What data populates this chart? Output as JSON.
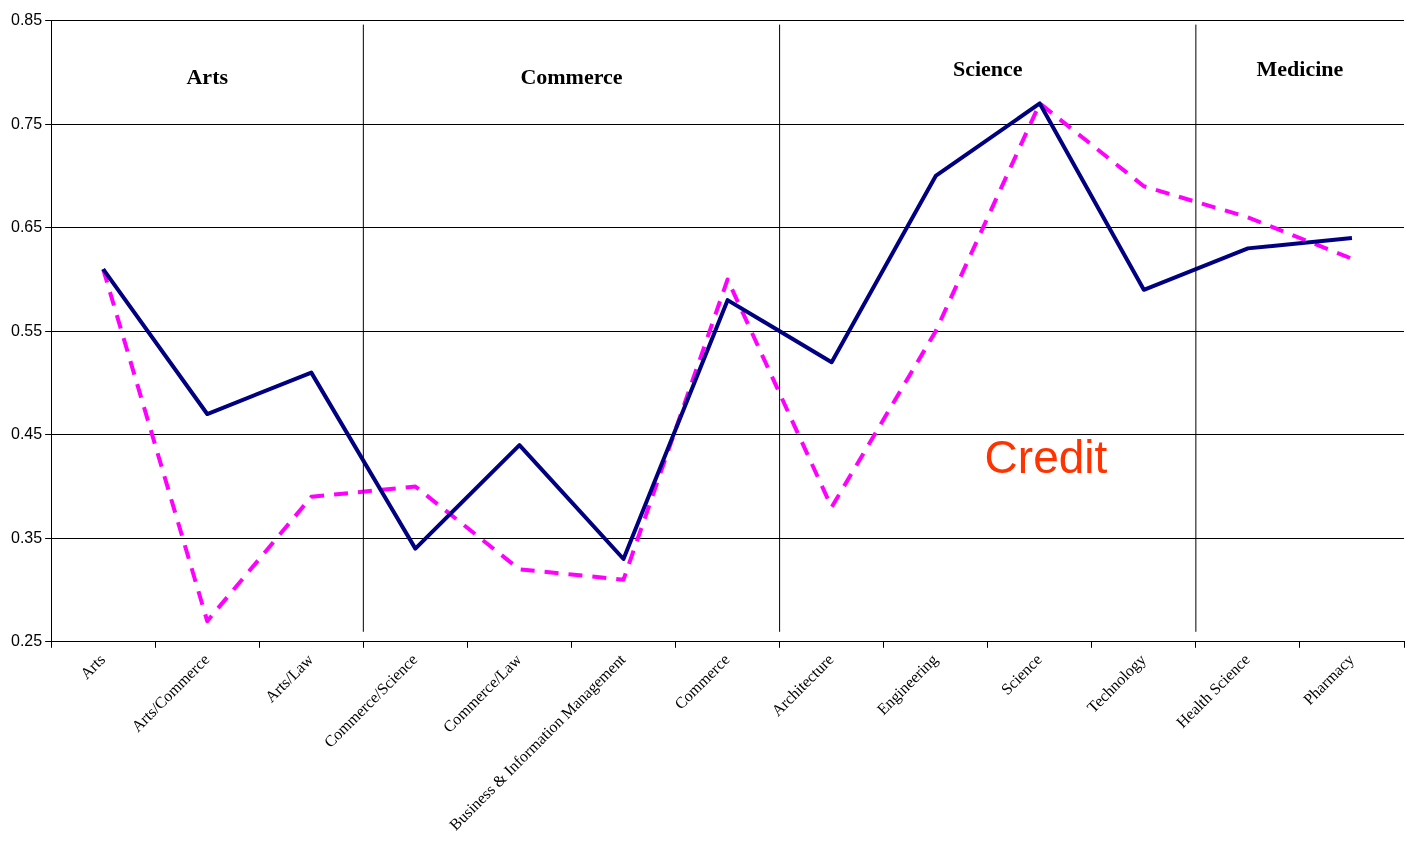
{
  "chart_data": {
    "type": "line",
    "categories": [
      "Arts",
      "Arts/Commerce",
      "Arts/Law",
      "Commerce/Science",
      "Commerce/Law",
      "Business & Information Management",
      "Commerce",
      "Architecture",
      "Engineering",
      "Science",
      "Technology",
      "Health Science",
      "Pharmacy"
    ],
    "series": [
      {
        "color": "#000080",
        "line_style": "solid",
        "values": [
          0.61,
          0.47,
          0.51,
          0.34,
          0.44,
          0.33,
          0.58,
          0.52,
          0.7,
          0.77,
          0.59,
          0.63,
          0.64
        ]
      },
      {
        "color": "#ff00ff",
        "line_style": "dashed",
        "values": [
          0.61,
          0.27,
          0.39,
          0.4,
          0.32,
          0.31,
          0.6,
          0.38,
          0.55,
          0.77,
          0.69,
          0.66,
          0.62
        ]
      }
    ],
    "ylim": [
      0.25,
      0.85
    ],
    "yticks": [
      0.25,
      0.35,
      0.45,
      0.55,
      0.65,
      0.75,
      0.85
    ],
    "grid": "y",
    "legend": false,
    "marker": "none",
    "annotations": [
      "Arts",
      "Commerce",
      "Science",
      "Medicine",
      "Credit"
    ]
  }
}
